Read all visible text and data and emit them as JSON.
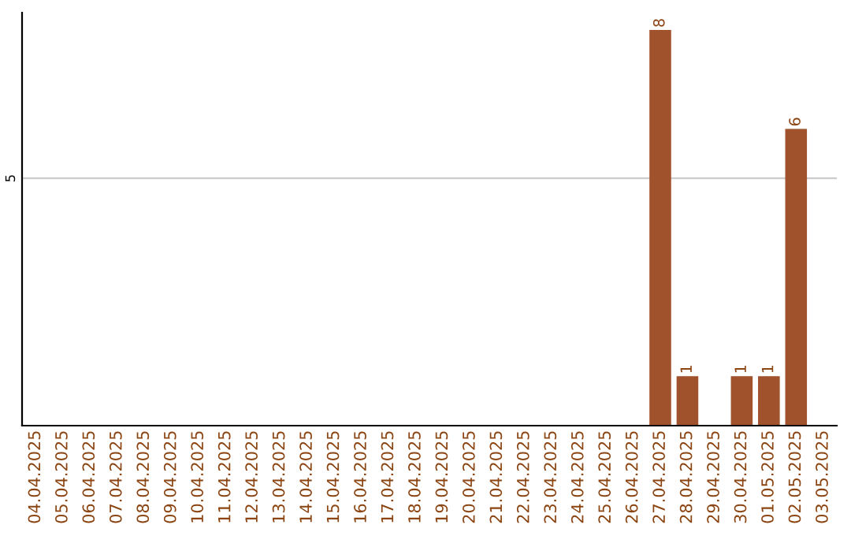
{
  "chart_data": {
    "type": "bar",
    "categories": [
      "04.04.2025",
      "05.04.2025",
      "06.04.2025",
      "07.04.2025",
      "08.04.2025",
      "09.04.2025",
      "10.04.2025",
      "11.04.2025",
      "12.04.2025",
      "13.04.2025",
      "14.04.2025",
      "15.04.2025",
      "16.04.2025",
      "17.04.2025",
      "18.04.2025",
      "19.04.2025",
      "20.04.2025",
      "21.04.2025",
      "22.04.2025",
      "23.04.2025",
      "24.04.2025",
      "25.04.2025",
      "26.04.2025",
      "27.04.2025",
      "28.04.2025",
      "29.04.2025",
      "30.04.2025",
      "01.05.2025",
      "02.05.2025",
      "03.05.2025"
    ],
    "values": [
      null,
      null,
      null,
      null,
      null,
      null,
      null,
      null,
      null,
      null,
      null,
      null,
      null,
      null,
      null,
      null,
      null,
      null,
      null,
      null,
      null,
      null,
      null,
      8,
      1,
      null,
      1,
      1,
      6,
      null
    ],
    "data_labels": true,
    "color": "#a0522d",
    "ylim": [
      0,
      8.35
    ],
    "yticks": [
      5
    ],
    "grid": "y"
  }
}
